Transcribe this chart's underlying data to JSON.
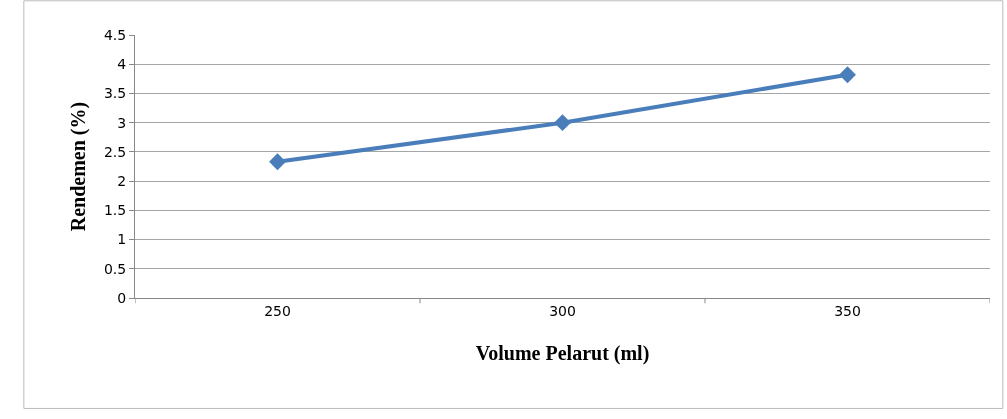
{
  "chart_data": {
    "type": "line",
    "xlabel": "Volume Pelarut (ml)",
    "ylabel": "Rendemen (%)",
    "categories": [
      "250",
      "300",
      "350"
    ],
    "series": [
      {
        "color": "#4a7ebb",
        "values": [
          2.33,
          3.0,
          3.82
        ]
      }
    ],
    "ylim": [
      0,
      4.5
    ],
    "yticks": [
      0,
      0.5,
      1,
      1.5,
      2,
      2.5,
      3,
      3.5,
      4,
      4.5
    ],
    "grid": "y",
    "marker": "diamond",
    "line_style": "solid"
  }
}
